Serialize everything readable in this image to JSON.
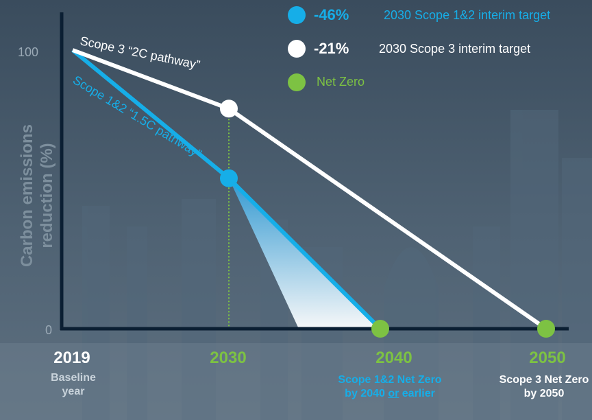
{
  "colors": {
    "scope12": "#16aee8",
    "scope3": "#ffffff",
    "net_zero": "#7dc243",
    "axis": "#0b1f33"
  },
  "chart_data": {
    "type": "line",
    "ylabel": "Carbon emissions reduction (%)",
    "ylim": [
      0,
      100
    ],
    "y_ticks": [
      "0",
      "100"
    ],
    "x_categories": [
      {
        "year": "2019",
        "sub": "Baseline year"
      },
      {
        "year": "2030",
        "sub": ""
      },
      {
        "year": "2040",
        "sub_pre": "Scope 1&2 Net Zero by 2040 ",
        "sub_u": "or",
        "sub_post": " earlier"
      },
      {
        "year": "2050",
        "sub": "Scope 3 Net Zero by 2050"
      }
    ],
    "series": [
      {
        "name": "Scope 1&2 “1.5C pathway”",
        "x": [
          2019,
          2030,
          2040
        ],
        "y": [
          100,
          54,
          0
        ]
      },
      {
        "name": "Scope 3 “2C pathway”",
        "x": [
          2019,
          2030,
          2050
        ],
        "y": [
          100,
          79,
          0
        ]
      }
    ],
    "legend": [
      {
        "pct": "-46%",
        "text": "2030 Scope 1&2 interim target"
      },
      {
        "pct": "-21%",
        "text": "2030 Scope 3 interim target"
      },
      {
        "pct": "",
        "text": "Net Zero"
      }
    ]
  }
}
